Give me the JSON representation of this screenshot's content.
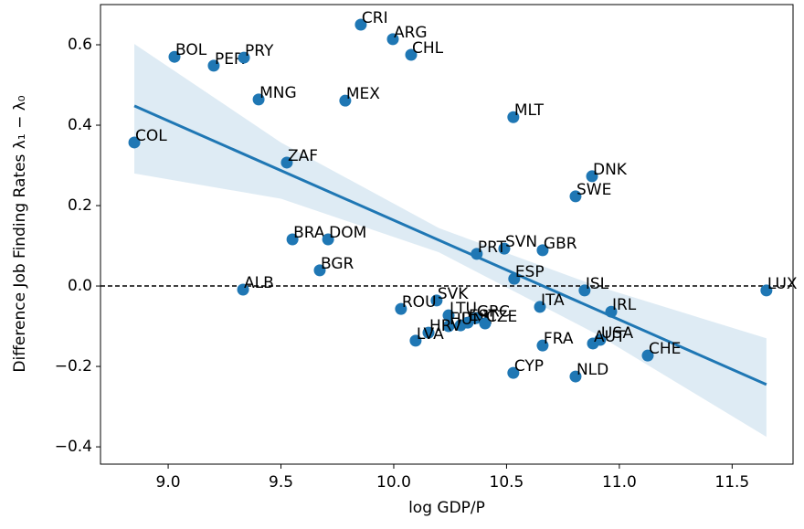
{
  "chart_data": {
    "type": "scatter",
    "x_label": "log GDP/P",
    "y_label": "Difference Job Finding Rates λ₁ − λ₀",
    "labels": [
      "CRI",
      "ARG",
      "CHL",
      "BOL",
      "PER",
      "PRY",
      "MNG",
      "MEX",
      "MLT",
      "COL",
      "ZAF",
      "DNK",
      "SWE",
      "BRA",
      "DOM",
      "SVN",
      "GBR",
      "PRT",
      "BGR",
      "ESP",
      "ALB",
      "ISL",
      "LUX",
      "SVK",
      "ROU",
      "ITA",
      "IRL",
      "LTU",
      "POL",
      "GRC",
      "EST",
      "HUN",
      "HRV",
      "CZE",
      "LVA",
      "FRA",
      "USA",
      "AUT",
      "CHE",
      "CYP",
      "NLD"
    ],
    "x": [
      9.854,
      9.996,
      10.077,
      9.028,
      9.202,
      9.336,
      9.401,
      9.785,
      10.53,
      8.85,
      9.526,
      10.879,
      10.806,
      9.551,
      9.709,
      10.49,
      10.66,
      10.368,
      9.672,
      10.534,
      9.332,
      10.846,
      11.652,
      10.19,
      10.032,
      10.648,
      10.964,
      10.243,
      10.296,
      10.364,
      10.328,
      10.243,
      10.154,
      10.405,
      10.097,
      10.66,
      10.915,
      10.883,
      11.126,
      10.53,
      10.806
    ],
    "values": [
      0.65,
      0.614,
      0.575,
      0.57,
      0.548,
      0.568,
      0.464,
      0.461,
      0.42,
      0.357,
      0.307,
      0.273,
      0.223,
      0.116,
      0.116,
      0.093,
      0.089,
      0.08,
      0.039,
      0.018,
      -0.009,
      -0.011,
      -0.011,
      -0.036,
      -0.057,
      -0.052,
      -0.064,
      -0.073,
      -0.098,
      -0.08,
      -0.091,
      -0.1,
      -0.116,
      -0.093,
      -0.136,
      -0.148,
      -0.134,
      -0.143,
      -0.173,
      -0.216,
      -0.225
    ],
    "color": "#1f77b4",
    "regression": {
      "x": [
        8.85,
        11.652
      ],
      "values": [
        0.448,
        -0.245
      ]
    },
    "band": {
      "x": [
        8.85,
        9.5,
        10.2,
        10.9,
        11.652
      ],
      "upper": [
        0.602,
        0.357,
        0.144,
        0.0,
        -0.13
      ],
      "lower": [
        0.28,
        0.217,
        0.084,
        -0.12,
        -0.375
      ]
    },
    "hline": 0,
    "xlim": [
      8.7,
      11.77
    ],
    "ylim": [
      -0.443,
      0.7
    ],
    "xticks": [
      {
        "value": 9,
        "label": "9.0"
      },
      9.5,
      {
        "value": 10,
        "label": "10.0"
      },
      10.5,
      {
        "value": 11,
        "label": "11.0"
      },
      11.5
    ],
    "yticks": [
      {
        "value": -0.4,
        "label": "−0.4"
      },
      {
        "value": -0.2,
        "label": "−0.2"
      },
      {
        "value": 0,
        "label": "0.0"
      },
      0.2,
      0.4,
      0.6
    ]
  }
}
